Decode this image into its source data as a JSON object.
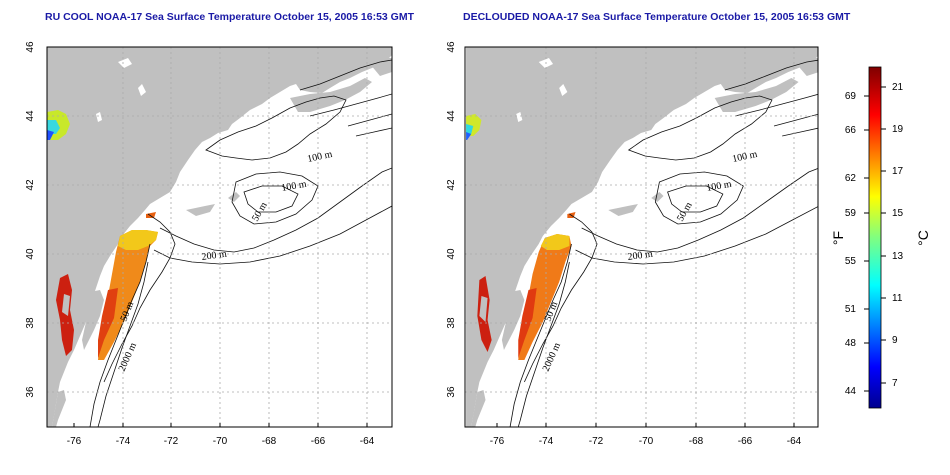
{
  "maps": [
    {
      "title": "RU COOL NOAA-17 Sea Surface Temperature October 15, 2005 16:53 GMT",
      "contour_labels": [
        "100 m",
        "100 m",
        "50 m",
        "200 m",
        "50 m",
        "2000 m"
      ]
    },
    {
      "title": "DECLOUDED NOAA-17 Sea Surface Temperature October 15, 2005 16:53 GMT",
      "contour_labels": [
        "100 m",
        "100 m",
        "50 m",
        "200 m",
        "50 m",
        "2000 m"
      ]
    }
  ],
  "axes": {
    "lon_ticks": [
      "-76",
      "-74",
      "-72",
      "-70",
      "-68",
      "-66",
      "-64"
    ],
    "lat_ticks": [
      "46",
      "44",
      "42",
      "40",
      "38",
      "36"
    ]
  },
  "colorbar": {
    "fahrenheit_ticks": [
      "69",
      "66",
      "62",
      "59",
      "55",
      "51",
      "48",
      "44"
    ],
    "celsius_ticks": [
      "21",
      "19",
      "17",
      "15",
      "13",
      "11",
      "9",
      "7"
    ],
    "fahrenheit_unit": "°F",
    "celsius_unit": "°C"
  },
  "colors": {
    "title": "#1a1aa6",
    "land": "#c0c0c0",
    "grid": "#aaaaaa"
  }
}
